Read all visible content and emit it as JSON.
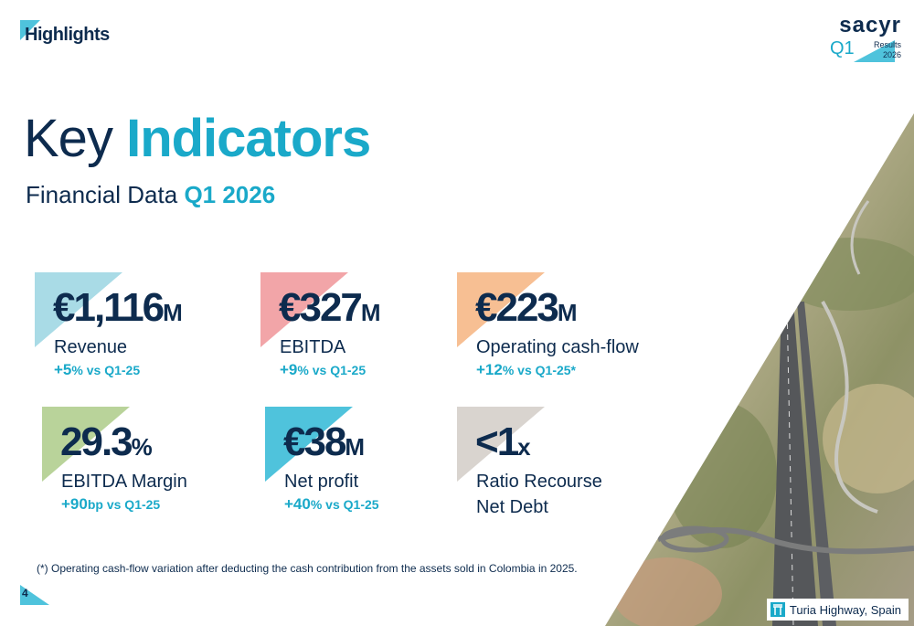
{
  "header": {
    "section": "Highlights",
    "brand": "sacyr",
    "period": "Q1",
    "badge_line1": "Results",
    "badge_line2": "2026"
  },
  "title": {
    "part1": "Key",
    "part2": "Indicators"
  },
  "subtitle": {
    "part1": "Financial Data",
    "part2": "Q1 2026"
  },
  "kpis": [
    {
      "value": "€1,116",
      "unit": "M",
      "label": [
        "Revenue"
      ],
      "delta": "+5",
      "delta_suffix": "% vs Q1-25"
    },
    {
      "value": "€327",
      "unit": "M",
      "label": [
        "EBITDA"
      ],
      "delta": "+9",
      "delta_suffix": "% vs Q1-25"
    },
    {
      "value": "€223",
      "unit": "M",
      "label": [
        "Operating cash-flow"
      ],
      "delta": "+12",
      "delta_suffix": "% vs Q1-25*"
    },
    {
      "value": "29.3",
      "unit": "%",
      "label": [
        "EBITDA Margin"
      ],
      "delta": "+90",
      "delta_suffix": "bp vs Q1-25"
    },
    {
      "value": "€38",
      "unit": "M",
      "label": [
        "Net profit"
      ],
      "delta": "+40",
      "delta_suffix": "% vs Q1-25"
    },
    {
      "value": "<1",
      "unit": "x",
      "label": [
        "Ratio Recourse",
        "Net Debt"
      ]
    }
  ],
  "footnote": "(*) Operating cash-flow variation after deducting the cash contribution from the assets sold in Colombia in 2025.",
  "page_number": "4",
  "photo_caption": "Turia Highway, Spain"
}
